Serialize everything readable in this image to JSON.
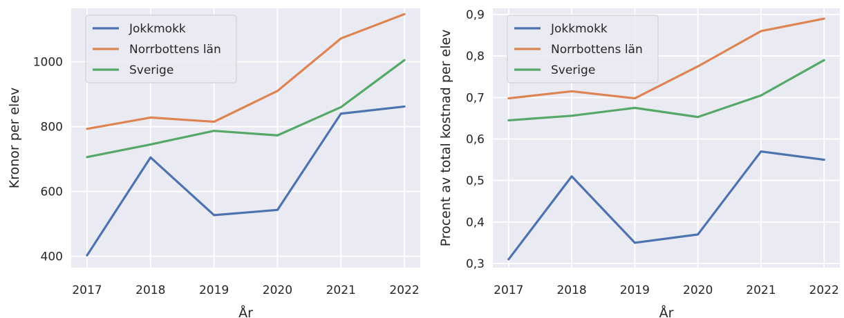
{
  "chart_data": [
    {
      "type": "line",
      "x": [
        2017,
        2018,
        2019,
        2020,
        2021,
        2022
      ],
      "xlabel": "År",
      "ylabel": "Kronor per elev",
      "yticks": [
        400,
        600,
        800,
        1000
      ],
      "ylim": [
        365,
        1165
      ],
      "grid": true,
      "legend_position": "top-left",
      "series": [
        {
          "name": "Jokkmokk",
          "color": "#4c72b0",
          "values": [
            403,
            705,
            527,
            543,
            840,
            862
          ]
        },
        {
          "name": "Norrbottens län",
          "color": "#dd8452",
          "values": [
            793,
            828,
            815,
            910,
            1072,
            1147
          ]
        },
        {
          "name": "Sverige",
          "color": "#55a868",
          "values": [
            706,
            745,
            787,
            773,
            860,
            1005
          ]
        }
      ]
    },
    {
      "type": "line",
      "x": [
        2017,
        2018,
        2019,
        2020,
        2021,
        2022
      ],
      "xlabel": "År",
      "ylabel": "Procent av total kostnad per elev",
      "yticks": [
        0.3,
        0.4,
        0.5,
        0.6,
        0.7,
        0.8,
        0.9
      ],
      "yticklabels": [
        "0,3",
        "0,4",
        "0,5",
        "0,6",
        "0,7",
        "0,8",
        "0,9"
      ],
      "ylim": [
        0.29,
        0.915
      ],
      "grid": true,
      "legend_position": "top-left",
      "series": [
        {
          "name": "Jokkmokk",
          "color": "#4c72b0",
          "values": [
            0.31,
            0.51,
            0.35,
            0.37,
            0.57,
            0.55
          ]
        },
        {
          "name": "Norrbottens län",
          "color": "#dd8452",
          "values": [
            0.698,
            0.715,
            0.698,
            0.775,
            0.86,
            0.89
          ]
        },
        {
          "name": "Sverige",
          "color": "#55a868",
          "values": [
            0.645,
            0.656,
            0.675,
            0.653,
            0.705,
            0.79
          ]
        }
      ]
    }
  ]
}
